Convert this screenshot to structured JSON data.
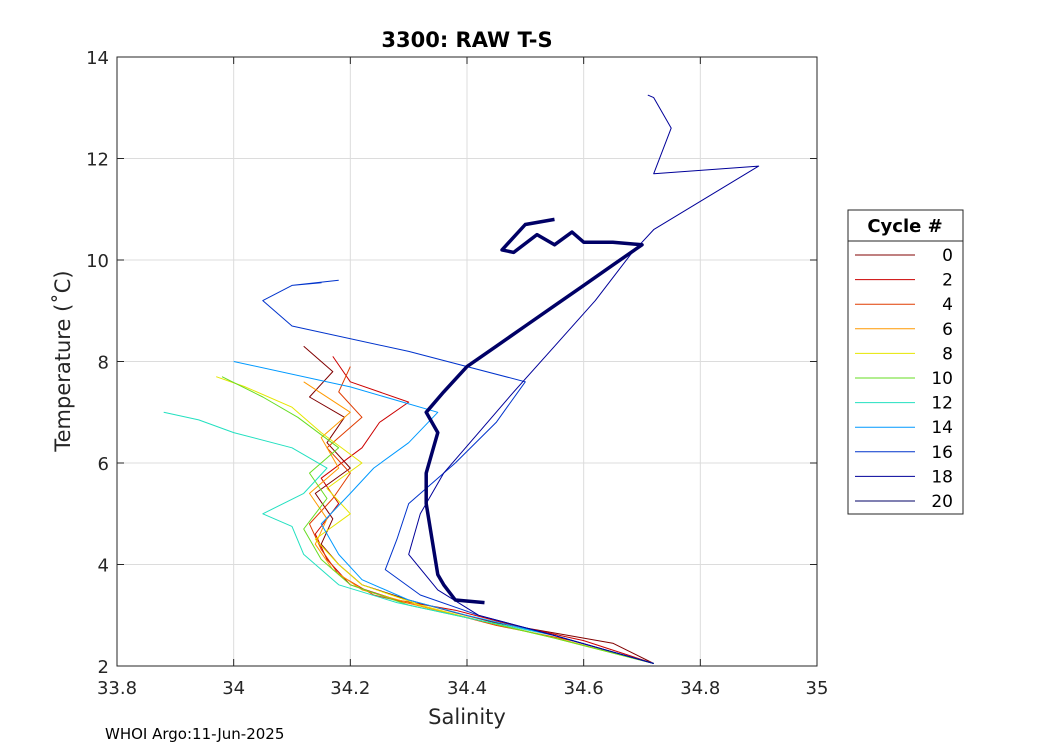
{
  "chart_data": {
    "type": "line",
    "title": "3300: RAW T-S",
    "xlabel": "Salinity",
    "ylabel": "Temperature (˚C)",
    "xlim": [
      33.8,
      35
    ],
    "ylim": [
      2,
      14
    ],
    "xticks": [
      "33.8",
      "34",
      "34.2",
      "34.4",
      "34.6",
      "34.8",
      "35"
    ],
    "yticks": [
      "2",
      "4",
      "6",
      "8",
      "10",
      "12",
      "14"
    ],
    "grid": true,
    "legend": {
      "title": "Cycle #",
      "placement": "right"
    },
    "series": [
      {
        "name": "0",
        "color": "#800000",
        "width": 1,
        "x": [
          34.72,
          34.65,
          34.55,
          34.45,
          34.38,
          34.3,
          34.22,
          34.18,
          34.15,
          34.17,
          34.14,
          34.2,
          34.16,
          34.19,
          34.13,
          34.17,
          34.12
        ],
        "y": [
          2.05,
          2.45,
          2.65,
          2.85,
          3.05,
          3.3,
          3.6,
          4.0,
          4.4,
          4.9,
          5.4,
          5.9,
          6.4,
          6.9,
          7.3,
          7.8,
          8.3
        ]
      },
      {
        "name": "2",
        "color": "#cc0000",
        "width": 1,
        "x": [
          34.72,
          34.6,
          34.48,
          34.38,
          34.28,
          34.2,
          34.16,
          34.14,
          34.18,
          34.15,
          34.22,
          34.25,
          34.3,
          34.2,
          34.17
        ],
        "y": [
          2.05,
          2.5,
          2.8,
          3.1,
          3.3,
          3.6,
          4.1,
          4.6,
          5.2,
          5.7,
          6.3,
          6.8,
          7.2,
          7.6,
          8.1
        ]
      },
      {
        "name": "4",
        "color": "#e03c00",
        "width": 1,
        "x": [
          34.72,
          34.58,
          34.45,
          34.35,
          34.24,
          34.18,
          34.15,
          34.13,
          34.17,
          34.2,
          34.16,
          34.22,
          34.18,
          34.2
        ],
        "y": [
          2.05,
          2.5,
          2.8,
          3.1,
          3.4,
          3.8,
          4.3,
          4.8,
          5.3,
          5.8,
          6.3,
          6.9,
          7.4,
          7.9
        ]
      },
      {
        "name": "6",
        "color": "#ff9900",
        "width": 1,
        "x": [
          34.72,
          34.57,
          34.44,
          34.33,
          34.22,
          34.17,
          34.14,
          34.16,
          34.13,
          34.18,
          34.15,
          34.2,
          34.12
        ],
        "y": [
          2.05,
          2.5,
          2.85,
          3.15,
          3.5,
          3.9,
          4.4,
          4.9,
          5.4,
          5.9,
          6.5,
          7.0,
          7.6
        ]
      },
      {
        "name": "8",
        "color": "#e6e600",
        "width": 1,
        "x": [
          34.72,
          34.55,
          34.42,
          34.32,
          34.22,
          34.18,
          34.14,
          34.2,
          34.16,
          34.22,
          34.15,
          34.1,
          34.02,
          33.97
        ],
        "y": [
          2.05,
          2.55,
          2.9,
          3.2,
          3.6,
          4.0,
          4.5,
          5.0,
          5.5,
          6.0,
          6.6,
          7.1,
          7.5,
          7.7
        ]
      },
      {
        "name": "10",
        "color": "#66dd22",
        "width": 1,
        "x": [
          34.72,
          34.55,
          34.42,
          34.3,
          34.2,
          34.15,
          34.12,
          34.16,
          34.13,
          34.18,
          34.11,
          34.05,
          33.98
        ],
        "y": [
          2.05,
          2.55,
          2.9,
          3.2,
          3.6,
          4.1,
          4.7,
          5.3,
          5.8,
          6.3,
          6.9,
          7.3,
          7.7
        ]
      },
      {
        "name": "12",
        "color": "#22e0c0",
        "width": 1,
        "x": [
          34.72,
          34.55,
          34.4,
          34.28,
          34.18,
          34.12,
          34.1,
          34.05,
          34.12,
          34.16,
          34.1,
          34.0,
          33.94,
          33.88
        ],
        "y": [
          2.05,
          2.6,
          2.95,
          3.25,
          3.6,
          4.2,
          4.75,
          5.0,
          5.4,
          5.9,
          6.3,
          6.6,
          6.85,
          7.0
        ]
      },
      {
        "name": "14",
        "color": "#0099ff",
        "width": 1,
        "x": [
          34.72,
          34.55,
          34.4,
          34.3,
          34.22,
          34.18,
          34.15,
          34.2,
          34.24,
          34.3,
          34.35,
          34.2,
          34.0
        ],
        "y": [
          2.05,
          2.6,
          3.0,
          3.3,
          3.7,
          4.2,
          4.8,
          5.4,
          5.9,
          6.4,
          7.0,
          7.5,
          8.0
        ]
      },
      {
        "name": "16",
        "color": "#0033cc",
        "width": 1,
        "x": [
          34.72,
          34.55,
          34.42,
          34.32,
          34.26,
          34.28,
          34.3,
          34.38,
          34.45,
          34.5,
          34.3,
          34.1,
          34.05,
          34.1,
          34.15,
          34.1,
          34.18
        ],
        "y": [
          2.05,
          2.6,
          3.0,
          3.4,
          3.9,
          4.5,
          5.2,
          6.0,
          6.8,
          7.6,
          8.2,
          8.7,
          9.2,
          9.5,
          9.55,
          9.5,
          9.6
        ]
      },
      {
        "name": "18",
        "color": "#000099",
        "width": 1,
        "x": [
          34.72,
          34.55,
          34.42,
          34.35,
          34.3,
          34.32,
          34.36,
          34.42,
          34.48,
          34.55,
          34.62,
          34.68,
          34.72,
          34.9,
          34.72,
          34.75,
          34.72,
          34.71
        ],
        "y": [
          2.05,
          2.6,
          3.0,
          3.5,
          4.2,
          5.0,
          5.8,
          6.6,
          7.4,
          8.3,
          9.2,
          10.1,
          10.6,
          11.85,
          11.7,
          12.6,
          13.2,
          13.25
        ]
      },
      {
        "name": "20",
        "color": "#000066",
        "width": 3.5,
        "x": [
          34.43,
          34.38,
          34.36,
          34.35,
          34.34,
          34.33,
          34.33,
          34.34,
          34.35,
          34.33,
          34.36,
          34.4,
          34.45,
          34.5,
          34.55,
          34.6,
          34.65,
          34.7,
          34.65,
          34.6,
          34.58,
          34.55,
          34.52,
          34.48,
          34.46,
          34.5,
          34.55
        ],
        "y": [
          3.25,
          3.3,
          3.6,
          3.8,
          4.5,
          5.2,
          5.8,
          6.2,
          6.6,
          7.0,
          7.4,
          7.9,
          8.3,
          8.7,
          9.1,
          9.5,
          9.9,
          10.3,
          10.35,
          10.35,
          10.55,
          10.3,
          10.5,
          10.15,
          10.2,
          10.7,
          10.8
        ]
      }
    ]
  },
  "footer": {
    "credit": "WHOI Argo:11-Jun-2025"
  }
}
